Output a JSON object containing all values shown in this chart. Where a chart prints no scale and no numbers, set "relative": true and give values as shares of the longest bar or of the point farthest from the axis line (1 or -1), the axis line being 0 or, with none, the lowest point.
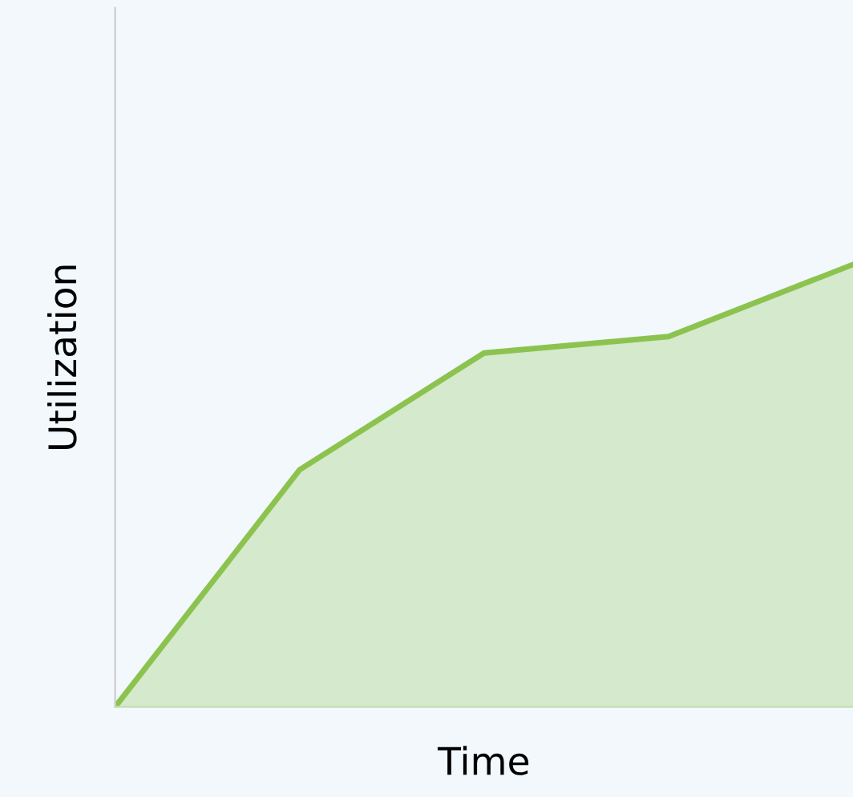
{
  "chart_data": {
    "type": "area",
    "xlabel": "Time",
    "ylabel": "Utilization",
    "relative": true,
    "categories": [
      null,
      null,
      null,
      null,
      null
    ],
    "series": [
      {
        "color": "#8cc34f",
        "values": [
          0,
          0.536,
          0.8,
          0.837,
          1
        ]
      }
    ]
  }
}
